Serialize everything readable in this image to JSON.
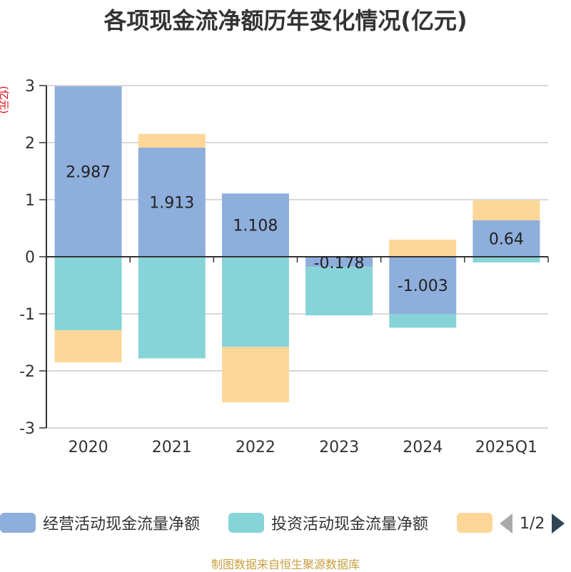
{
  "chart_data": {
    "type": "bar",
    "stacked": true,
    "title": "各项现金流净额历年变化情况(亿元)",
    "ylabel": "(亿元)",
    "categories": [
      "2020",
      "2021",
      "2022",
      "2023",
      "2024",
      "2025Q1"
    ],
    "ylim": [
      -3,
      3
    ],
    "yticks": [
      3,
      2,
      1,
      0,
      -1,
      -2,
      -3
    ],
    "grid": true,
    "legend_position": "bottom",
    "series": [
      {
        "name": "经营活动现金流量净额",
        "color": "#8eaedb",
        "values": [
          2.987,
          1.913,
          1.108,
          -0.178,
          -1.003,
          0.64
        ]
      },
      {
        "name": "投资活动现金流量净额",
        "color": "#86d4d8",
        "values": [
          -1.29,
          -1.78,
          -1.58,
          -0.85,
          -0.24,
          -0.1
        ]
      },
      {
        "name": "",
        "color": "#fdd797",
        "values": [
          -0.56,
          0.24,
          -0.97,
          0,
          0.3,
          0.35
        ]
      }
    ],
    "data_labels": [
      "2.987",
      "1.913",
      "1.108",
      "-0.178",
      "-1.003",
      "0.64"
    ]
  },
  "legend": {
    "items": [
      {
        "label": "经营活动现金流量净额",
        "color": "#8eaedb"
      },
      {
        "label": "投资活动现金流量净额",
        "color": "#86d4d8"
      },
      {
        "label": "",
        "color": "#fdd797"
      }
    ],
    "page_text": "1/2"
  },
  "footer": {
    "source": "制图数据来自恒生聚源数据库"
  }
}
